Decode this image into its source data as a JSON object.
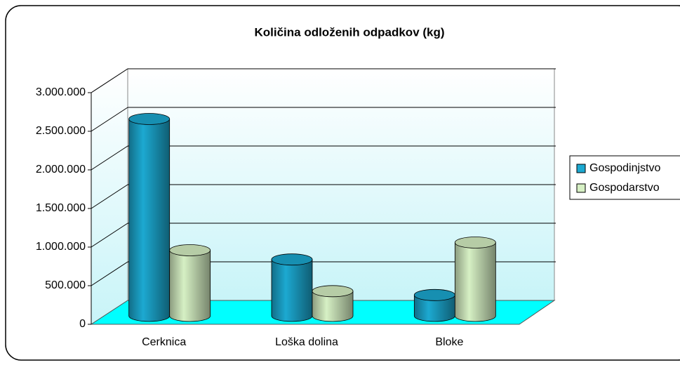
{
  "chart_data": {
    "type": "bar3d",
    "title": "Količina odloženih odpadkov (kg)",
    "categories": [
      "Cerknica",
      "Loška dolina",
      "Bloke"
    ],
    "series": [
      {
        "name": "Gospodinjstvo",
        "color": "#1ca9d1",
        "values": [
          2550000,
          730000,
          270000
        ]
      },
      {
        "name": "Gospodarstvo",
        "color": "#d6f0c4",
        "values": [
          850000,
          320000,
          950000
        ]
      }
    ],
    "ylim": [
      0,
      3000000
    ],
    "yticks": [
      0,
      {
        "value": 500000,
        "label": "500.000"
      },
      {
        "value": 1000000,
        "label": "1.000.000"
      },
      {
        "value": 1500000,
        "label": "1.500.000"
      },
      {
        "value": 2000000,
        "label": "2.000.000"
      },
      {
        "value": 2500000,
        "label": "2.500.000"
      },
      {
        "value": 3000000,
        "label": "3.000.000"
      }
    ],
    "grid": true,
    "legend": "right"
  }
}
